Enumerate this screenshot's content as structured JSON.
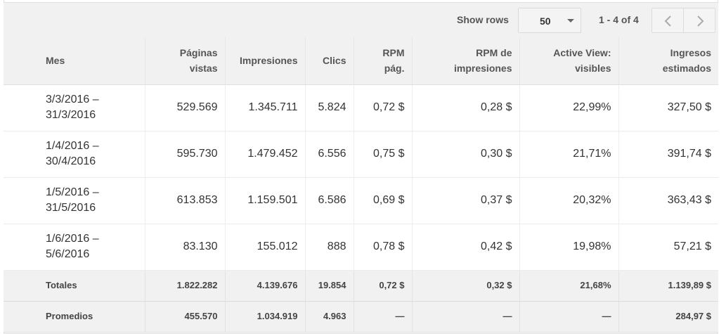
{
  "toolbar": {
    "show_rows_label": "Show rows",
    "rows_value": "50",
    "range_label": "1 - 4 of 4"
  },
  "table": {
    "headers": [
      [
        "Mes"
      ],
      [
        "Páginas",
        "vistas"
      ],
      [
        "Impresiones"
      ],
      [
        "Clics"
      ],
      [
        "RPM",
        "pág."
      ],
      [
        "RPM de",
        "impresiones"
      ],
      [
        "Active View:",
        "visibles"
      ],
      [
        "Ingresos",
        "estimados"
      ]
    ],
    "rows": [
      {
        "period": [
          "3/3/2016 –",
          "31/3/2016"
        ],
        "values": [
          "529.569",
          "1.345.711",
          "5.824",
          "0,72 $",
          "0,28 $",
          "22,99%",
          "327,50 $"
        ]
      },
      {
        "period": [
          "1/4/2016 –",
          "30/4/2016"
        ],
        "values": [
          "595.730",
          "1.479.452",
          "6.556",
          "0,75 $",
          "0,30 $",
          "21,71%",
          "391,74 $"
        ]
      },
      {
        "period": [
          "1/5/2016 –",
          "31/5/2016"
        ],
        "values": [
          "613.853",
          "1.159.501",
          "6.586",
          "0,69 $",
          "0,37 $",
          "20,32%",
          "363,43 $"
        ]
      },
      {
        "period": [
          "1/6/2016 –",
          "5/6/2016"
        ],
        "values": [
          "83.130",
          "155.012",
          "888",
          "0,78 $",
          "0,42 $",
          "19,98%",
          "57,21 $"
        ]
      }
    ],
    "totals": {
      "label": "Totales",
      "values": [
        "1.822.282",
        "4.139.676",
        "19.854",
        "0,72 $",
        "0,32 $",
        "21,68%",
        "1.139,89 $"
      ]
    },
    "averages": {
      "label": "Promedios",
      "values": [
        "455.570",
        "1.034.919",
        "4.963",
        "—",
        "—",
        "—",
        "284,97 $"
      ]
    }
  }
}
